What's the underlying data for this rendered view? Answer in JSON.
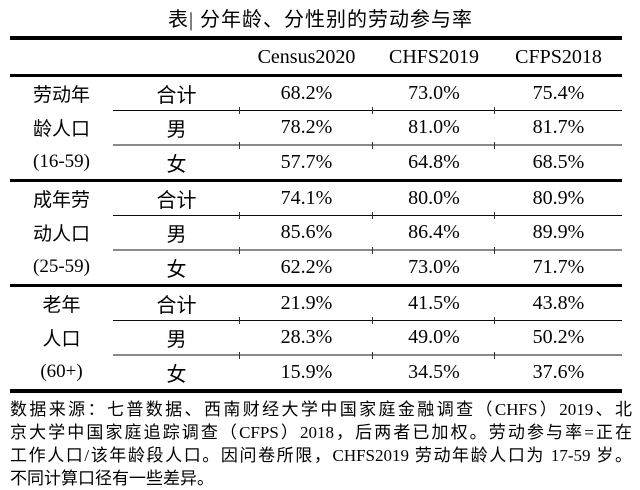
{
  "page": {
    "title": "表| 分年龄、分性别的劳动参与率"
  },
  "table": {
    "headers": [
      "Census2020",
      "CHFS2019",
      "CFPS2018"
    ],
    "groups": [
      {
        "label_lines": [
          "劳动年",
          "龄人口",
          "(16-59)"
        ],
        "rows": [
          {
            "category": "合计",
            "values": [
              "68.2%",
              "73.0%",
              "75.4%"
            ]
          },
          {
            "category": "男",
            "values": [
              "78.2%",
              "81.0%",
              "81.7%"
            ]
          },
          {
            "category": "女",
            "values": [
              "57.7%",
              "64.8%",
              "68.5%"
            ]
          }
        ]
      },
      {
        "label_lines": [
          "成年劳",
          "动人口",
          "(25-59)"
        ],
        "rows": [
          {
            "category": "合计",
            "values": [
              "74.1%",
              "80.0%",
              "80.9%"
            ]
          },
          {
            "category": "男",
            "values": [
              "85.6%",
              "86.4%",
              "89.9%"
            ]
          },
          {
            "category": "女",
            "values": [
              "62.2%",
              "73.0%",
              "71.7%"
            ]
          }
        ]
      },
      {
        "label_lines": [
          "老年",
          "人口",
          "(60+)"
        ],
        "rows": [
          {
            "category": "合计",
            "values": [
              "21.9%",
              "41.5%",
              "43.8%"
            ]
          },
          {
            "category": "男",
            "values": [
              "28.3%",
              "49.0%",
              "50.2%"
            ]
          },
          {
            "category": "女",
            "values": [
              "15.9%",
              "34.5%",
              "37.6%"
            ]
          }
        ]
      }
    ]
  },
  "footnote": {
    "lines": [
      "数据来源：七普数据、西南财经大学中国家庭金融调查（CHFS）2019、北",
      "京大学中国家庭追踪调查（CFPS）2018，后两者已加权。劳动参与率=正在",
      "工作人口/该年龄段人口。因问卷所限，CHFS2019 劳动年龄人口为 17-59 岁。",
      "不同计算口径有一些差异。"
    ]
  },
  "colors": {
    "text": "#000000",
    "rule": "#000000",
    "background": "#ffffff"
  }
}
